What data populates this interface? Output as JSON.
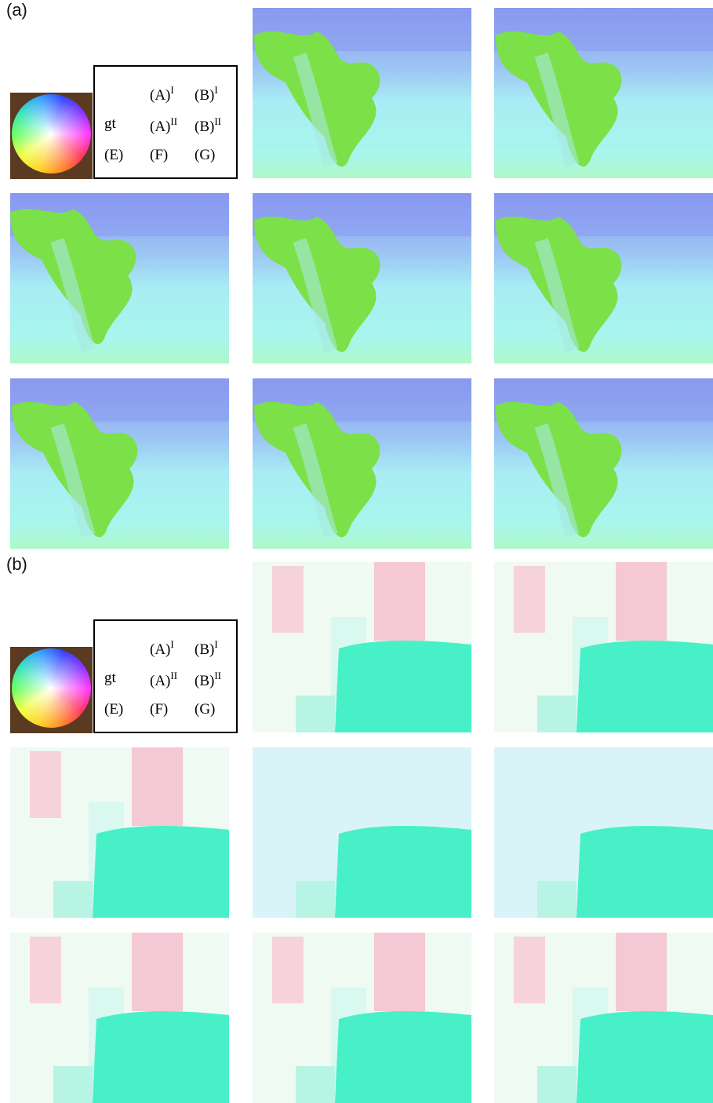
{
  "panels": [
    {
      "label": "(a)",
      "legend": [
        [
          {
            "text": "(A)",
            "sup": "I"
          },
          {
            "text": "(B)",
            "sup": "I"
          }
        ],
        [
          {
            "text": "gt"
          },
          {
            "text": "(A)",
            "sup": "II"
          },
          {
            "text": "(B)",
            "sup": "II"
          }
        ],
        [
          {
            "text": "(E)"
          },
          {
            "text": "(F)"
          },
          {
            "text": "(G)"
          }
        ]
      ]
    },
    {
      "label": "(b)",
      "legend": [
        [
          {
            "text": "(A)",
            "sup": "I"
          },
          {
            "text": "(B)",
            "sup": "I"
          }
        ],
        [
          {
            "text": "gt"
          },
          {
            "text": "(A)",
            "sup": "II"
          },
          {
            "text": "(B)",
            "sup": "II"
          }
        ],
        [
          {
            "text": "(E)"
          },
          {
            "text": "(F)"
          },
          {
            "text": "(G)"
          }
        ]
      ]
    }
  ]
}
